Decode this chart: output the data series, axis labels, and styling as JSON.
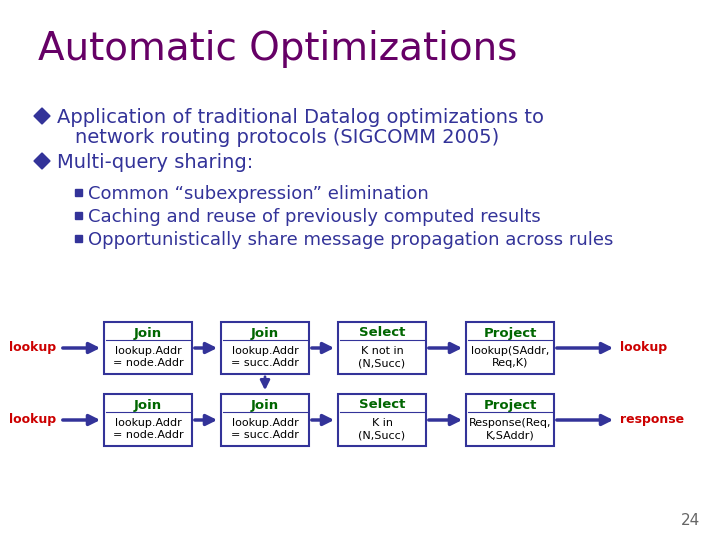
{
  "title": "Automatic Optimizations",
  "title_color": "#660066",
  "title_fontsize": 28,
  "background_color": "#FFFFFF",
  "bullet_color": "#333399",
  "bullet1_line1": "Application of traditional Datalog optimizations to",
  "bullet1_line2": "network routing protocols (SIGCOMM 2005)",
  "bullet2": "Multi-query sharing:",
  "sub_bullets": [
    "Common “subexpression” elimination",
    "Caching and reuse of previously computed results",
    "Opportunistically share message propagation across rules"
  ],
  "bullet_fontsize": 14,
  "sub_bullet_fontsize": 13,
  "page_number": "24",
  "diagram": {
    "row1": {
      "input_label": "lookup",
      "boxes": [
        {
          "title": "Join",
          "body": "lookup.Addr\n= node.Addr"
        },
        {
          "title": "Join",
          "body": "lookup.Addr\n= succ.Addr"
        },
        {
          "title": "Select",
          "body": "K not in\n(N,Succ)"
        },
        {
          "title": "Project",
          "body": "lookup(SAddr,\nReq,K)"
        }
      ],
      "output_label": "lookup"
    },
    "row2": {
      "input_label": "lookup",
      "boxes": [
        {
          "title": "Join",
          "body": "lookup.Addr\n= node.Addr"
        },
        {
          "title": "Join",
          "body": "lookup.Addr\n= succ.Addr"
        },
        {
          "title": "Select",
          "body": "K in\n(N,Succ)"
        },
        {
          "title": "Project",
          "body": "Response(Req,\nK,SAddr)"
        }
      ],
      "output_label": "response"
    },
    "box_title_color": "#006600",
    "box_body_color": "#000000",
    "box_border_color": "#333399",
    "arrow_color": "#333399",
    "label_color": "#CC0000"
  }
}
